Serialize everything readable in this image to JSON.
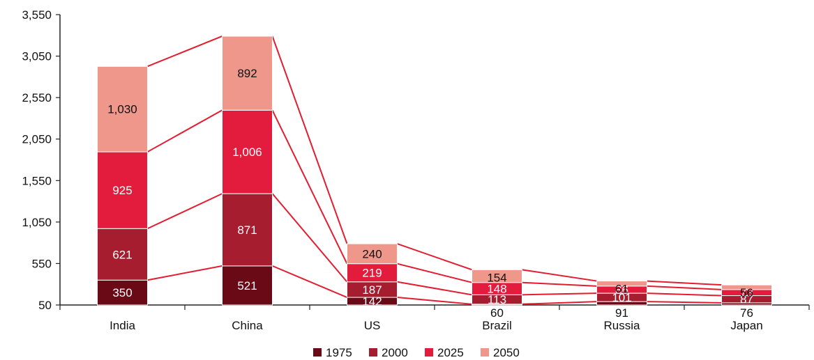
{
  "chart_data": {
    "type": "bar",
    "stacked": true,
    "title": "",
    "xlabel": "",
    "ylabel": "",
    "ylim": [
      50,
      3550
    ],
    "yticks": [
      "3,550",
      "3,050",
      "2,550",
      "2,050",
      "1,550",
      "1,050",
      "550",
      "50"
    ],
    "categories": [
      "India",
      "China",
      "US",
      "Brazil",
      "Russia",
      "Japan"
    ],
    "series": [
      {
        "name": "1975",
        "color": "#6b0a17",
        "values": [
          350,
          521,
          142,
          60,
          91,
          76
        ],
        "labels": [
          "350",
          "521",
          "142",
          "60",
          "91",
          "76"
        ]
      },
      {
        "name": "2000",
        "color": "#a61d2f",
        "values": [
          621,
          871,
          187,
          113,
          101,
          87
        ],
        "labels": [
          "621",
          "871",
          "187",
          "113",
          "101",
          "87"
        ]
      },
      {
        "name": "2025",
        "color": "#e31c3d",
        "values": [
          925,
          1006,
          219,
          148,
          86,
          73
        ],
        "labels": [
          "925",
          "1,006",
          "219",
          "148",
          "86",
          "73"
        ]
      },
      {
        "name": "2050",
        "color": "#ef978a",
        "values": [
          1030,
          892,
          240,
          154,
          61,
          56
        ],
        "labels": [
          "1,030",
          "892",
          "240",
          "154",
          "61",
          "56"
        ]
      }
    ],
    "connector_color": "#e31c2f",
    "legend_position": "bottom-center",
    "grid": false
  }
}
